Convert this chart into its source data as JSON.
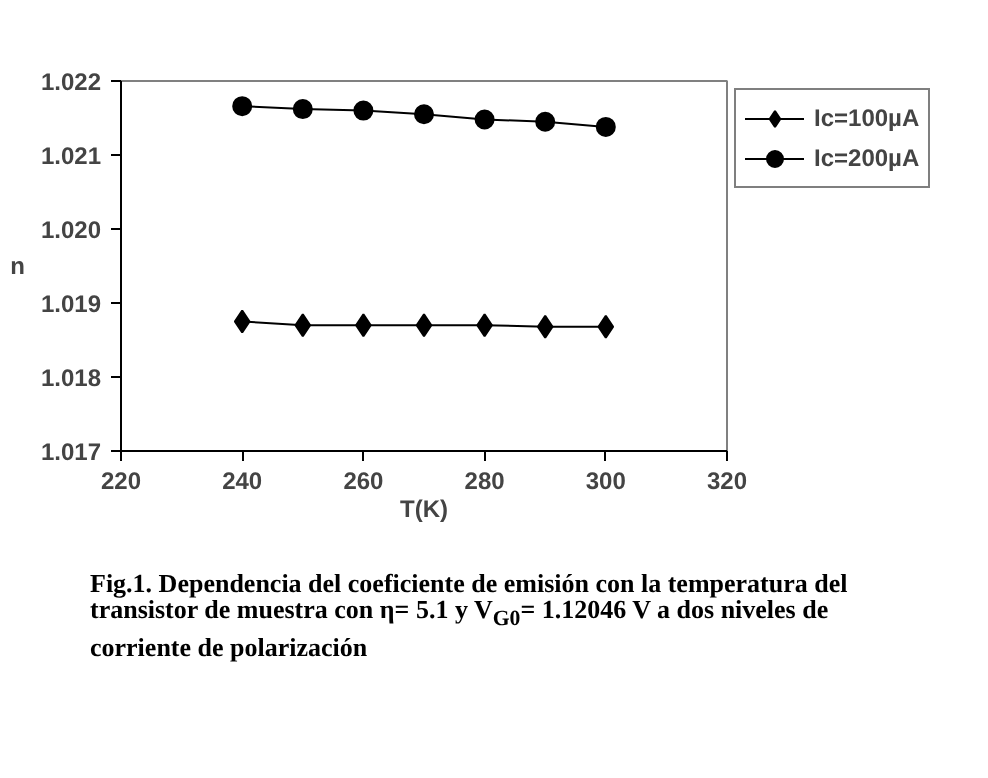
{
  "chart_data": {
    "type": "line",
    "x": [
      240,
      250,
      260,
      270,
      280,
      290,
      300
    ],
    "series": [
      {
        "name": "Ic=100µA",
        "color": "#000000",
        "marker": "diamond",
        "values": [
          1.01875,
          1.0187,
          1.0187,
          1.0187,
          1.0187,
          1.01868,
          1.01868
        ]
      },
      {
        "name": "Ic=200µA",
        "color": "#000000",
        "marker": "circle",
        "values": [
          1.02166,
          1.02162,
          1.0216,
          1.02155,
          1.02148,
          1.02145,
          1.02138
        ]
      }
    ],
    "xlabel": "T(K)",
    "ylabel": "n",
    "xlim": [
      220,
      320
    ],
    "xticks": [
      220,
      240,
      260,
      280,
      300,
      320
    ],
    "ylim": [
      1.017,
      1.022
    ],
    "yticks": [
      {
        "value": 1.017,
        "label": "1.017"
      },
      {
        "value": 1.018,
        "label": "1.018"
      },
      {
        "value": 1.019,
        "label": "1.019"
      },
      {
        "value": 1.02,
        "label": "1.020"
      },
      {
        "value": 1.021,
        "label": "1.021"
      },
      {
        "value": 1.022,
        "label": "1.022"
      }
    ],
    "grid": false,
    "legend": "top right",
    "line_style": "solid",
    "annotations": [
      "Fig.1. Dependencia del coeficiente de  emisión con la temperatura del  transistor de muestra con  η= 5.1  y V$_{G0}$= 1.12046 V a  dos niveles de corriente de polarización"
    ]
  }
}
